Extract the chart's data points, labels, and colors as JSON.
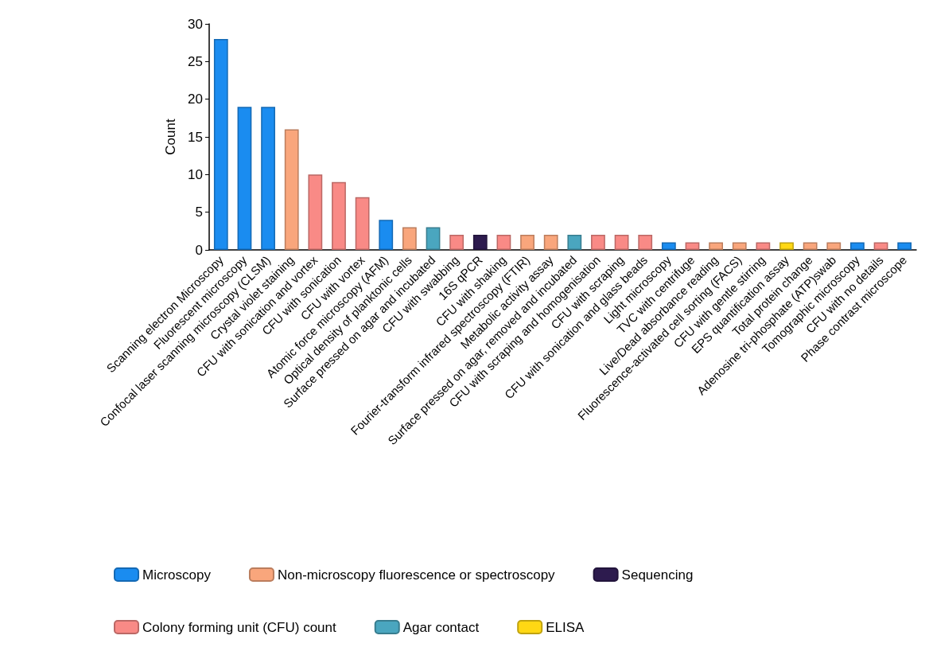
{
  "chart_data": {
    "type": "bar",
    "ylabel": "Count",
    "stacked": true,
    "legend": "bottom",
    "grid": false,
    "ylim": [
      0,
      30
    ],
    "yticks": [
      0,
      5,
      10,
      15,
      20,
      25,
      30
    ],
    "categories": [
      "Scanning electron Microscopy",
      "Fluorescent microscopy",
      "Confocal laser scanning microscopy (CLSM)",
      "Crystal violet staining",
      "CFU with sonication and vortex",
      "CFU with sonication",
      "CFU with vortex",
      "Atomic force microscopy (AFM)",
      "Optical density of planktonic cells",
      "Surface pressed on agar and incubated",
      "CFU with swabbing",
      "16S qPCR",
      "CFU with shaking",
      "Fourier-transform infrared spectroscopy (FTIR)",
      "Metabolic activity assay",
      "Surface pressed on agar, removed and incubated",
      "CFU with scraping and homogenisation",
      "CFU with scraping",
      "CFU with sonication and glass beads",
      "Light microscopy",
      "TVC with centrifuge",
      "Live/Dead absorbance reading",
      "Fluorescence-activated cell sorting (FACS)",
      "CFU with gentle stirring",
      "EPS quantification assay",
      "Total protein change",
      "Adenosine tri-phosphate (ATP)swab",
      "Tomographic microscopy",
      "CFU with no details",
      "Phase contrast microscope"
    ],
    "series": [
      {
        "name": "Microscopy",
        "color": "#1a8cf0",
        "values": [
          28,
          19,
          19,
          null,
          null,
          null,
          null,
          4,
          null,
          null,
          null,
          null,
          null,
          null,
          null,
          null,
          null,
          null,
          null,
          1,
          null,
          null,
          null,
          null,
          null,
          null,
          null,
          1,
          null,
          1
        ]
      },
      {
        "name": "Non-microscopy fluorescence or spectroscopy",
        "color": "#f9a67c",
        "values": [
          null,
          null,
          null,
          16,
          null,
          null,
          null,
          null,
          3,
          null,
          null,
          null,
          null,
          2,
          2,
          null,
          null,
          null,
          null,
          null,
          null,
          1,
          1,
          null,
          null,
          1,
          1,
          null,
          null,
          null
        ]
      },
      {
        "name": "Sequencing",
        "color": "#2d1b4e",
        "values": [
          null,
          null,
          null,
          null,
          null,
          null,
          null,
          null,
          null,
          null,
          null,
          2,
          null,
          null,
          null,
          null,
          null,
          null,
          null,
          null,
          null,
          null,
          null,
          null,
          null,
          null,
          null,
          null,
          null,
          null
        ]
      },
      {
        "name": "Colony forming unit (CFU) count",
        "color": "#f98a86",
        "values": [
          null,
          null,
          null,
          null,
          10,
          9,
          7,
          null,
          null,
          null,
          2,
          null,
          2,
          null,
          null,
          null,
          2,
          2,
          2,
          null,
          1,
          null,
          null,
          1,
          null,
          null,
          null,
          null,
          1,
          null
        ]
      },
      {
        "name": "Agar contact",
        "color": "#4aa6bf",
        "values": [
          null,
          null,
          null,
          null,
          null,
          null,
          null,
          null,
          null,
          3,
          null,
          null,
          null,
          null,
          null,
          2,
          null,
          null,
          null,
          null,
          null,
          null,
          null,
          null,
          null,
          null,
          null,
          null,
          null,
          null
        ]
      },
      {
        "name": "ELISA",
        "color": "#ffd814",
        "values": [
          null,
          null,
          null,
          null,
          null,
          null,
          null,
          null,
          null,
          null,
          null,
          null,
          null,
          null,
          null,
          null,
          null,
          null,
          null,
          null,
          null,
          null,
          null,
          null,
          1,
          null,
          null,
          null,
          null,
          null
        ]
      }
    ]
  }
}
